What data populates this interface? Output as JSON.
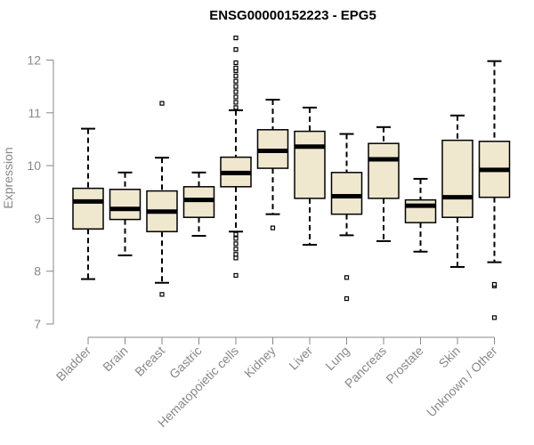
{
  "chart_data": {
    "type": "boxplot",
    "title": "ENSG00000152223 - EPG5",
    "xlabel": "",
    "ylabel": "Expression",
    "ylim": [
      7,
      12.2
    ],
    "yticks": [
      7,
      8,
      9,
      10,
      11,
      12
    ],
    "colors": {
      "box_fill": "#efe8cf",
      "box_stroke": "#000000",
      "axis": "#888888"
    },
    "categories": [
      "Bladder",
      "Brain",
      "Breast",
      "Gastric",
      "Hematopoietic cells",
      "Kidney",
      "Liver",
      "Lung",
      "Pancreas",
      "Prostate",
      "Skin",
      "Unknown / Other"
    ],
    "boxes": [
      {
        "name": "Bladder",
        "whisker_low": 7.85,
        "q1": 8.8,
        "median": 9.32,
        "q3": 9.57,
        "whisker_high": 10.7,
        "outliers": []
      },
      {
        "name": "Brain",
        "whisker_low": 8.3,
        "q1": 8.98,
        "median": 9.18,
        "q3": 9.55,
        "whisker_high": 9.87,
        "outliers": []
      },
      {
        "name": "Breast",
        "whisker_low": 7.78,
        "q1": 8.75,
        "median": 9.13,
        "q3": 9.52,
        "whisker_high": 10.15,
        "outliers": [
          7.56,
          11.18
        ]
      },
      {
        "name": "Gastric",
        "whisker_low": 8.67,
        "q1": 9.02,
        "median": 9.35,
        "q3": 9.6,
        "whisker_high": 9.87,
        "outliers": []
      },
      {
        "name": "Hematopoietic cells",
        "whisker_low": 8.75,
        "q1": 9.6,
        "median": 9.86,
        "q3": 10.16,
        "whisker_high": 11.05,
        "outliers": [
          7.92,
          8.25,
          8.32,
          8.42,
          8.52,
          8.62,
          8.7,
          11.1,
          11.2,
          11.3,
          11.4,
          11.5,
          11.6,
          11.7,
          11.8,
          11.85,
          11.95,
          12.2,
          12.42
        ]
      },
      {
        "name": "Kidney",
        "whisker_low": 9.08,
        "q1": 9.95,
        "median": 10.28,
        "q3": 10.68,
        "whisker_high": 11.25,
        "outliers": [
          8.82
        ]
      },
      {
        "name": "Liver",
        "whisker_low": 8.5,
        "q1": 9.38,
        "median": 10.36,
        "q3": 10.65,
        "whisker_high": 11.1,
        "outliers": []
      },
      {
        "name": "Lung",
        "whisker_low": 8.68,
        "q1": 9.08,
        "median": 9.42,
        "q3": 9.87,
        "whisker_high": 10.6,
        "outliers": [
          7.48,
          7.88
        ]
      },
      {
        "name": "Pancreas",
        "whisker_low": 8.57,
        "q1": 9.38,
        "median": 10.12,
        "q3": 10.42,
        "whisker_high": 10.73,
        "outliers": []
      },
      {
        "name": "Prostate",
        "whisker_low": 8.37,
        "q1": 8.92,
        "median": 9.24,
        "q3": 9.35,
        "whisker_high": 9.75,
        "outliers": []
      },
      {
        "name": "Skin",
        "whisker_low": 8.08,
        "q1": 9.02,
        "median": 9.4,
        "q3": 10.48,
        "whisker_high": 10.95,
        "outliers": []
      },
      {
        "name": "Unknown / Other",
        "whisker_low": 8.17,
        "q1": 9.4,
        "median": 9.92,
        "q3": 10.46,
        "whisker_high": 11.98,
        "outliers": [
          7.12,
          7.72,
          7.75
        ]
      }
    ]
  }
}
